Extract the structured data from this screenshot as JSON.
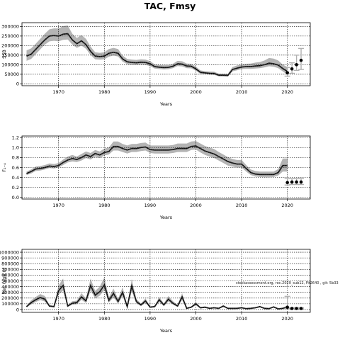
{
  "figure": {
    "title": "TAC, Fmsy",
    "note": "stockassessment.org, rec.2020_sub12, Fit2640 , git: 5b33"
  },
  "chart_data": [
    {
      "type": "line",
      "name": "tac",
      "title": "",
      "xlabel": "Years",
      "ylabel": "SSB",
      "xlim": [
        1962,
        2025
      ],
      "ylim": [
        -10000,
        320000
      ],
      "xticks": [
        1970,
        1980,
        1990,
        2000,
        2010,
        2020
      ],
      "yticks": [
        0,
        50000,
        100000,
        150000,
        200000,
        250000,
        300000
      ],
      "grid": true,
      "x": [
        1963,
        1964,
        1965,
        1966,
        1967,
        1968,
        1969,
        1970,
        1971,
        1972,
        1973,
        1974,
        1975,
        1976,
        1977,
        1978,
        1979,
        1980,
        1981,
        1982,
        1983,
        1984,
        1985,
        1986,
        1987,
        1988,
        1989,
        1990,
        1991,
        1992,
        1993,
        1994,
        1995,
        1996,
        1997,
        1998,
        1999,
        2000,
        2001,
        2002,
        2003,
        2004,
        2005,
        2006,
        2007,
        2008,
        2009,
        2010,
        2011,
        2012,
        2013,
        2014,
        2015,
        2016,
        2017,
        2018,
        2019,
        2020
      ],
      "values": [
        145000,
        155000,
        180000,
        205000,
        230000,
        250000,
        253000,
        250000,
        260000,
        262000,
        230000,
        210000,
        225000,
        205000,
        170000,
        145000,
        142000,
        145000,
        160000,
        165000,
        160000,
        130000,
        115000,
        112000,
        110000,
        113000,
        112000,
        105000,
        90000,
        87000,
        85000,
        86000,
        92000,
        105000,
        103000,
        93000,
        92000,
        78000,
        60000,
        57000,
        55000,
        54000,
        45000,
        45000,
        44000,
        75000,
        82000,
        88000,
        90000,
        90000,
        93000,
        95000,
        100000,
        108000,
        105000,
        98000,
        80000,
        65000
      ],
      "lower": [
        120000,
        130000,
        155000,
        180000,
        205000,
        222000,
        225000,
        222000,
        230000,
        232000,
        205000,
        188000,
        200000,
        183000,
        150000,
        128000,
        126000,
        128000,
        142000,
        148000,
        143000,
        116000,
        103000,
        100000,
        98000,
        100000,
        99000,
        93000,
        80000,
        77000,
        75000,
        76000,
        82000,
        93000,
        91000,
        82000,
        81000,
        69000,
        52000,
        50000,
        48000,
        47000,
        39000,
        39000,
        38000,
        65000,
        71000,
        77000,
        78000,
        78000,
        80000,
        82000,
        86000,
        92000,
        89000,
        82000,
        65000,
        48000
      ],
      "upper": [
        175000,
        185000,
        210000,
        235000,
        262000,
        285000,
        290000,
        290000,
        302000,
        305000,
        262000,
        240000,
        255000,
        235000,
        195000,
        165000,
        162000,
        165000,
        182000,
        188000,
        182000,
        148000,
        130000,
        127000,
        125000,
        128000,
        127000,
        119000,
        102000,
        99000,
        97000,
        98000,
        105000,
        120000,
        118000,
        106000,
        105000,
        90000,
        70000,
        66000,
        64000,
        63000,
        53000,
        53000,
        52000,
        88000,
        96000,
        102000,
        105000,
        106000,
        111000,
        114000,
        122000,
        135000,
        132000,
        122000,
        100000,
        88000
      ],
      "forecast": [
        {
          "x": 2020,
          "y": 58000,
          "lo": 40000,
          "hi": 85000
        },
        {
          "x": 2021,
          "y": 78000,
          "lo": 55000,
          "hi": 110000
        },
        {
          "x": 2022,
          "y": 100000,
          "lo": 70000,
          "hi": 150000
        },
        {
          "x": 2023,
          "y": 123000,
          "lo": 75000,
          "hi": 185000
        }
      ]
    },
    {
      "type": "line",
      "name": "f",
      "title": "",
      "xlabel": "Years",
      "ylabel": "F₂₋₄",
      "xlim": [
        1962,
        2025
      ],
      "ylim": [
        -0.03,
        1.23
      ],
      "xticks": [
        1970,
        1980,
        1990,
        2000,
        2010,
        2020
      ],
      "yticks": [
        0.0,
        0.2,
        0.4,
        0.6,
        0.8,
        1.0,
        1.2
      ],
      "grid": true,
      "x": [
        1963,
        1964,
        1965,
        1966,
        1967,
        1968,
        1969,
        1970,
        1971,
        1972,
        1973,
        1974,
        1975,
        1976,
        1977,
        1978,
        1979,
        1980,
        1981,
        1982,
        1983,
        1984,
        1985,
        1986,
        1987,
        1988,
        1989,
        1990,
        1991,
        1992,
        1993,
        1994,
        1995,
        1996,
        1997,
        1998,
        1999,
        2000,
        2001,
        2002,
        2003,
        2004,
        2005,
        2006,
        2007,
        2008,
        2009,
        2010,
        2011,
        2012,
        2013,
        2014,
        2015,
        2016,
        2017,
        2018,
        2019,
        2020
      ],
      "values": [
        0.48,
        0.52,
        0.57,
        0.58,
        0.6,
        0.63,
        0.62,
        0.64,
        0.7,
        0.75,
        0.78,
        0.76,
        0.8,
        0.85,
        0.82,
        0.88,
        0.85,
        0.9,
        0.92,
        1.02,
        1.02,
        0.98,
        0.95,
        0.98,
        0.98,
        1.0,
        1.01,
        0.96,
        0.95,
        0.95,
        0.95,
        0.95,
        0.96,
        0.98,
        0.98,
        0.98,
        1.02,
        1.03,
        0.98,
        0.93,
        0.9,
        0.87,
        0.82,
        0.77,
        0.72,
        0.69,
        0.67,
        0.67,
        0.58,
        0.5,
        0.47,
        0.46,
        0.46,
        0.46,
        0.46,
        0.5,
        0.64,
        0.64
      ],
      "lower": [
        0.45,
        0.48,
        0.53,
        0.54,
        0.56,
        0.59,
        0.58,
        0.6,
        0.65,
        0.7,
        0.72,
        0.71,
        0.74,
        0.79,
        0.76,
        0.82,
        0.79,
        0.84,
        0.86,
        0.94,
        0.94,
        0.91,
        0.88,
        0.91,
        0.91,
        0.93,
        0.94,
        0.89,
        0.88,
        0.88,
        0.88,
        0.88,
        0.89,
        0.91,
        0.91,
        0.91,
        0.95,
        0.96,
        0.9,
        0.85,
        0.82,
        0.79,
        0.74,
        0.69,
        0.64,
        0.62,
        0.6,
        0.6,
        0.52,
        0.45,
        0.42,
        0.41,
        0.41,
        0.41,
        0.41,
        0.44,
        0.52,
        0.52
      ],
      "upper": [
        0.52,
        0.56,
        0.62,
        0.63,
        0.65,
        0.68,
        0.67,
        0.69,
        0.76,
        0.82,
        0.85,
        0.82,
        0.87,
        0.92,
        0.89,
        0.95,
        0.92,
        0.98,
        1.0,
        1.12,
        1.12,
        1.07,
        1.04,
        1.07,
        1.07,
        1.09,
        1.1,
        1.04,
        1.04,
        1.04,
        1.04,
        1.04,
        1.05,
        1.08,
        1.08,
        1.08,
        1.12,
        1.13,
        1.08,
        1.03,
        1.0,
        0.97,
        0.91,
        0.86,
        0.81,
        0.77,
        0.75,
        0.75,
        0.65,
        0.56,
        0.53,
        0.52,
        0.52,
        0.52,
        0.52,
        0.57,
        0.78,
        0.78
      ],
      "forecast": [
        {
          "x": 2020,
          "y": 0.3,
          "lo": 0.25,
          "hi": 0.38
        },
        {
          "x": 2021,
          "y": 0.31,
          "lo": 0.26,
          "hi": 0.38
        },
        {
          "x": 2022,
          "y": 0.31,
          "lo": 0.26,
          "hi": 0.38
        },
        {
          "x": 2023,
          "y": 0.31,
          "lo": 0.26,
          "hi": 0.38
        }
      ]
    },
    {
      "type": "line",
      "name": "rec",
      "title": "",
      "xlabel": "Years",
      "ylabel": "Rec (age 0)",
      "xlim": [
        1962,
        2025
      ],
      "ylim": [
        -50000,
        1050000
      ],
      "xticks": [
        1970,
        1980,
        1990,
        2000,
        2010,
        2020
      ],
      "yticks": [
        0,
        100000,
        200000,
        300000,
        400000,
        500000,
        600000,
        700000,
        800000,
        900000,
        1000000
      ],
      "grid": true,
      "x": [
        1963,
        1964,
        1965,
        1966,
        1967,
        1968,
        1969,
        1970,
        1971,
        1972,
        1973,
        1974,
        1975,
        1976,
        1977,
        1978,
        1979,
        1980,
        1981,
        1982,
        1983,
        1984,
        1985,
        1986,
        1987,
        1988,
        1989,
        1990,
        1991,
        1992,
        1993,
        1994,
        1995,
        1996,
        1997,
        1998,
        1999,
        2000,
        2001,
        2002,
        2003,
        2004,
        2005,
        2006,
        2007,
        2008,
        2009,
        2010,
        2011,
        2012,
        2013,
        2014,
        2015,
        2016,
        2017,
        2018,
        2019,
        2020
      ],
      "values": [
        50000,
        120000,
        170000,
        210000,
        180000,
        60000,
        50000,
        330000,
        420000,
        60000,
        110000,
        120000,
        220000,
        150000,
        420000,
        250000,
        310000,
        430000,
        160000,
        280000,
        140000,
        300000,
        50000,
        410000,
        140000,
        80000,
        150000,
        40000,
        50000,
        170000,
        80000,
        180000,
        110000,
        60000,
        220000,
        20000,
        40000,
        100000,
        30000,
        40000,
        20000,
        30000,
        20000,
        60000,
        20000,
        20000,
        20000,
        30000,
        15000,
        20000,
        30000,
        50000,
        20000,
        15000,
        45000,
        10000,
        20000,
        40000
      ],
      "lower": [
        40000,
        90000,
        130000,
        165000,
        140000,
        45000,
        38000,
        260000,
        330000,
        45000,
        85000,
        92000,
        170000,
        115000,
        330000,
        195000,
        240000,
        340000,
        120000,
        215000,
        105000,
        230000,
        35000,
        320000,
        105000,
        60000,
        115000,
        30000,
        38000,
        130000,
        60000,
        140000,
        85000,
        45000,
        170000,
        14000,
        30000,
        76000,
        22000,
        30000,
        14000,
        22000,
        14000,
        45000,
        14000,
        14000,
        14000,
        22000,
        10000,
        14000,
        22000,
        38000,
        14000,
        10000,
        33000,
        7000,
        12000,
        20000
      ],
      "upper": [
        65000,
        160000,
        220000,
        270000,
        235000,
        80000,
        65000,
        420000,
        540000,
        80000,
        145000,
        155000,
        285000,
        195000,
        540000,
        325000,
        400000,
        560000,
        210000,
        365000,
        185000,
        390000,
        70000,
        530000,
        185000,
        105000,
        195000,
        55000,
        66000,
        220000,
        105000,
        235000,
        145000,
        80000,
        285000,
        28000,
        55000,
        130000,
        42000,
        55000,
        28000,
        42000,
        28000,
        80000,
        28000,
        28000,
        28000,
        42000,
        21000,
        28000,
        42000,
        66000,
        28000,
        21000,
        60000,
        14000,
        30000,
        70000
      ],
      "forecast": [
        {
          "x": 2020,
          "y": 40000,
          "lo": 20000,
          "hi": 230000
        },
        {
          "x": 2021,
          "y": 18000,
          "lo": 12000,
          "hi": 30000
        },
        {
          "x": 2022,
          "y": 18000,
          "lo": 12000,
          "hi": 30000
        },
        {
          "x": 2023,
          "y": 18000,
          "lo": 12000,
          "hi": 30000
        }
      ]
    }
  ]
}
